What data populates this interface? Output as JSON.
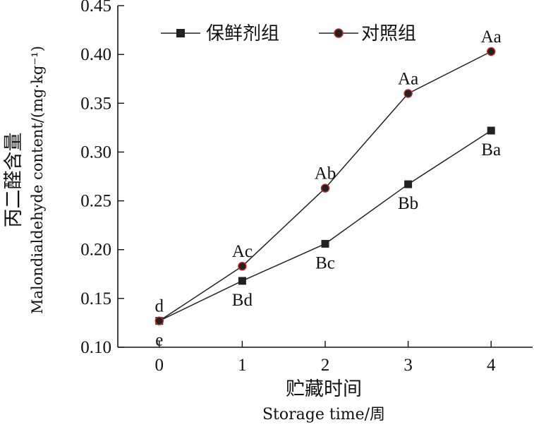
{
  "chart_data": {
    "type": "line",
    "x": [
      0,
      1,
      2,
      3,
      4
    ],
    "xlim": [
      -0.5,
      4.5
    ],
    "ylim": [
      0.1,
      0.45
    ],
    "x_ticks": [
      "0",
      "1",
      "2",
      "3",
      "4"
    ],
    "y_ticks": [
      "0.10",
      "0.15",
      "0.20",
      "0.25",
      "0.30",
      "0.35",
      "0.40",
      "0.45"
    ],
    "xlabel": {
      "line1": "贮藏时间",
      "line2": "Storage time/周"
    },
    "ylabel": {
      "line1": "丙二醛含量",
      "line2": "Malondialdehyde content/(mg·kg⁻¹)"
    },
    "legend_position": "top",
    "grid": false,
    "series": [
      {
        "name": "保鲜剂组",
        "marker": "square",
        "color": "#222222",
        "values": [
          0.127,
          0.168,
          0.206,
          0.267,
          0.322
        ],
        "labels": [
          "e",
          "Bd",
          "Bc",
          "Bb",
          "Ba"
        ],
        "label_position": "below"
      },
      {
        "name": "对照组",
        "marker": "circle",
        "color": "#222222",
        "marker_edge": "#cc2222",
        "values": [
          0.127,
          0.183,
          0.263,
          0.36,
          0.403
        ],
        "labels": [
          "d",
          "Ac",
          "Ab",
          "Aa",
          "Aa"
        ],
        "label_position": "above"
      }
    ]
  }
}
